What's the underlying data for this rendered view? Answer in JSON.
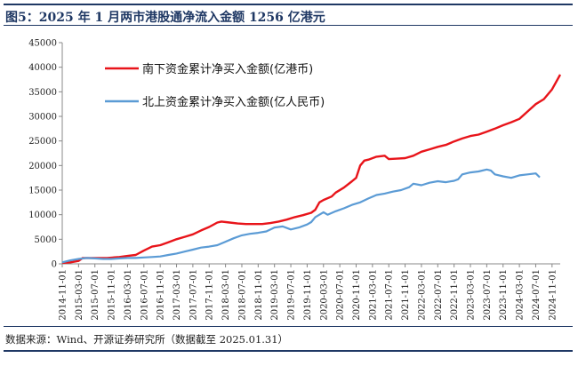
{
  "title": "图5：2025 年 1 月两市港股通净流入金额 1256 亿港元",
  "source": "数据来源：Wind、开源证券研究所（数据截至 2025.01.31）",
  "chart_data": {
    "type": "line",
    "ylim": [
      0,
      45000
    ],
    "yticks": [
      0,
      5000,
      10000,
      15000,
      20000,
      25000,
      30000,
      35000,
      40000,
      45000
    ],
    "xlim": [
      "2014-11",
      "2025-01"
    ],
    "xticks": [
      "2014-11-01",
      "2015-03-01",
      "2015-07-01",
      "2015-11-01",
      "2016-03-01",
      "2016-07-01",
      "2016-11-01",
      "2017-03-01",
      "2017-07-01",
      "2017-11-01",
      "2018-03-01",
      "2018-07-01",
      "2018-11-01",
      "2019-03-01",
      "2019-07-01",
      "2019-11-01",
      "2020-03-01",
      "2020-07-01",
      "2020-11-01",
      "2021-03-01",
      "2021-07-01",
      "2021-11-01",
      "2022-03-01",
      "2022-07-01",
      "2022-11-01",
      "2023-03-01",
      "2023-07-01",
      "2023-11-01",
      "2024-03-01",
      "2024-07-01",
      "2024-11-01"
    ],
    "legend_position": "top-left",
    "grid": false,
    "series": [
      {
        "name": "南下资金累计净买入金额(亿港币)",
        "color": "#e8141a",
        "points": [
          [
            "2014-11",
            200
          ],
          [
            "2015-01",
            300
          ],
          [
            "2015-03",
            600
          ],
          [
            "2015-04",
            1200
          ],
          [
            "2015-07",
            1200
          ],
          [
            "2015-10",
            1200
          ],
          [
            "2016-01",
            1400
          ],
          [
            "2016-03",
            1600
          ],
          [
            "2016-05",
            1800
          ],
          [
            "2016-07",
            2700
          ],
          [
            "2016-09",
            3500
          ],
          [
            "2016-11",
            3800
          ],
          [
            "2017-01",
            4400
          ],
          [
            "2017-03",
            5000
          ],
          [
            "2017-05",
            5500
          ],
          [
            "2017-07",
            6000
          ],
          [
            "2017-09",
            6800
          ],
          [
            "2017-11",
            7500
          ],
          [
            "2018-01",
            8400
          ],
          [
            "2018-02",
            8600
          ],
          [
            "2018-04",
            8400
          ],
          [
            "2018-06",
            8200
          ],
          [
            "2018-08",
            8100
          ],
          [
            "2018-10",
            8100
          ],
          [
            "2018-12",
            8100
          ],
          [
            "2019-02",
            8300
          ],
          [
            "2019-04",
            8600
          ],
          [
            "2019-06",
            9000
          ],
          [
            "2019-08",
            9500
          ],
          [
            "2019-10",
            9900
          ],
          [
            "2019-12",
            10400
          ],
          [
            "2020-01",
            11000
          ],
          [
            "2020-02",
            12500
          ],
          [
            "2020-03",
            13000
          ],
          [
            "2020-05",
            13700
          ],
          [
            "2020-06",
            14500
          ],
          [
            "2020-08",
            15500
          ],
          [
            "2020-10",
            16800
          ],
          [
            "2020-11",
            17500
          ],
          [
            "2020-12",
            20000
          ],
          [
            "2021-01",
            21000
          ],
          [
            "2021-02",
            21200
          ],
          [
            "2021-04",
            21800
          ],
          [
            "2021-06",
            22000
          ],
          [
            "2021-07",
            21300
          ],
          [
            "2021-09",
            21400
          ],
          [
            "2021-11",
            21500
          ],
          [
            "2022-01",
            22000
          ],
          [
            "2022-03",
            22800
          ],
          [
            "2022-05",
            23300
          ],
          [
            "2022-07",
            23800
          ],
          [
            "2022-09",
            24200
          ],
          [
            "2022-11",
            24900
          ],
          [
            "2023-01",
            25500
          ],
          [
            "2023-03",
            26000
          ],
          [
            "2023-05",
            26300
          ],
          [
            "2023-07",
            26900
          ],
          [
            "2023-09",
            27500
          ],
          [
            "2023-11",
            28200
          ],
          [
            "2024-01",
            28800
          ],
          [
            "2024-03",
            29500
          ],
          [
            "2024-05",
            31000
          ],
          [
            "2024-07",
            32500
          ],
          [
            "2024-09",
            33500
          ],
          [
            "2024-11",
            35500
          ],
          [
            "2025-01",
            38500
          ]
        ]
      },
      {
        "name": "北上资金累计净买入金额(亿人民币)",
        "color": "#5b9bd5",
        "points": [
          [
            "2014-11",
            300
          ],
          [
            "2015-01",
            700
          ],
          [
            "2015-03",
            1000
          ],
          [
            "2015-05",
            1200
          ],
          [
            "2015-07",
            1100
          ],
          [
            "2015-09",
            1000
          ],
          [
            "2015-11",
            1000
          ],
          [
            "2016-01",
            1100
          ],
          [
            "2016-03",
            1200
          ],
          [
            "2016-05",
            1200
          ],
          [
            "2016-07",
            1300
          ],
          [
            "2016-09",
            1400
          ],
          [
            "2016-11",
            1500
          ],
          [
            "2017-01",
            1800
          ],
          [
            "2017-03",
            2100
          ],
          [
            "2017-05",
            2500
          ],
          [
            "2017-07",
            2900
          ],
          [
            "2017-09",
            3300
          ],
          [
            "2017-11",
            3500
          ],
          [
            "2018-01",
            3800
          ],
          [
            "2018-03",
            4500
          ],
          [
            "2018-05",
            5200
          ],
          [
            "2018-07",
            5800
          ],
          [
            "2018-09",
            6100
          ],
          [
            "2018-11",
            6300
          ],
          [
            "2019-01",
            6600
          ],
          [
            "2019-03",
            7400
          ],
          [
            "2019-05",
            7600
          ],
          [
            "2019-07",
            7000
          ],
          [
            "2019-09",
            7400
          ],
          [
            "2019-11",
            8000
          ],
          [
            "2019-12",
            8500
          ],
          [
            "2020-01",
            9500
          ],
          [
            "2020-03",
            10500
          ],
          [
            "2020-04",
            10000
          ],
          [
            "2020-06",
            10700
          ],
          [
            "2020-08",
            11300
          ],
          [
            "2020-10",
            12000
          ],
          [
            "2020-12",
            12500
          ],
          [
            "2021-02",
            13300
          ],
          [
            "2021-04",
            14000
          ],
          [
            "2021-06",
            14300
          ],
          [
            "2021-08",
            14700
          ],
          [
            "2021-10",
            15000
          ],
          [
            "2021-12",
            15600
          ],
          [
            "2022-01",
            16300
          ],
          [
            "2022-03",
            16000
          ],
          [
            "2022-05",
            16500
          ],
          [
            "2022-07",
            16800
          ],
          [
            "2022-09",
            16600
          ],
          [
            "2022-11",
            16900
          ],
          [
            "2022-12",
            17200
          ],
          [
            "2023-01",
            18200
          ],
          [
            "2023-03",
            18600
          ],
          [
            "2023-05",
            18800
          ],
          [
            "2023-07",
            19200
          ],
          [
            "2023-08",
            19000
          ],
          [
            "2023-09",
            18200
          ],
          [
            "2023-11",
            17800
          ],
          [
            "2024-01",
            17500
          ],
          [
            "2024-03",
            18000
          ],
          [
            "2024-05",
            18200
          ],
          [
            "2024-07",
            18400
          ],
          [
            "2024-08",
            17600
          ]
        ]
      }
    ]
  }
}
